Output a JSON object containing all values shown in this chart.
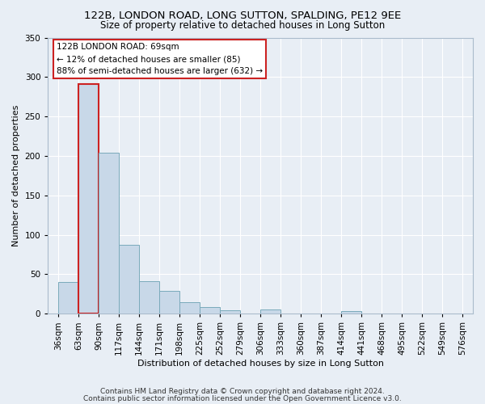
{
  "title1": "122B, LONDON ROAD, LONG SUTTON, SPALDING, PE12 9EE",
  "title2": "Size of property relative to detached houses in Long Sutton",
  "xlabel": "Distribution of detached houses by size in Long Sutton",
  "ylabel": "Number of detached properties",
  "footer1": "Contains HM Land Registry data © Crown copyright and database right 2024.",
  "footer2": "Contains public sector information licensed under the Open Government Licence v3.0.",
  "annotation_title": "122B LONDON ROAD: 69sqm",
  "annotation_line2": "← 12% of detached houses are smaller (85)",
  "annotation_line3": "88% of semi-detached houses are larger (632) →",
  "property_sqm": 69,
  "bar_edges": [
    36,
    63,
    90,
    117,
    144,
    171,
    198,
    225,
    252,
    279,
    306,
    333,
    360,
    387,
    414,
    441,
    468,
    495,
    522,
    549,
    576
  ],
  "bar_values": [
    40,
    291,
    204,
    87,
    41,
    29,
    15,
    8,
    4,
    0,
    5,
    0,
    0,
    0,
    3,
    0,
    0,
    0,
    0,
    0
  ],
  "bar_color": "#c8d8e8",
  "bar_edge_color": "#7aaabb",
  "highlight_bar_index": 1,
  "highlight_color": "#cc2222",
  "bg_color": "#e8eef5",
  "plot_bg_color": "#e8eef5",
  "ylim": [
    0,
    350
  ],
  "yticks": [
    0,
    50,
    100,
    150,
    200,
    250,
    300,
    350
  ],
  "title_fontsize": 9.5,
  "subtitle_fontsize": 8.5,
  "axis_label_fontsize": 8,
  "tick_fontsize": 7.5,
  "footer_fontsize": 6.5,
  "annotation_fontsize": 7.5
}
